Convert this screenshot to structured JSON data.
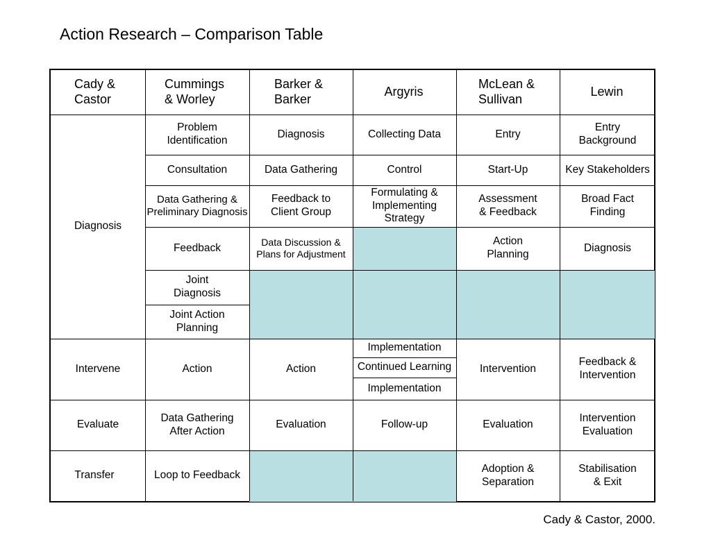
{
  "title": "Action Research – Comparison Table",
  "credit": "Cady & Castor, 2000.",
  "colors": {
    "shade": "#b9dfe2",
    "border": "#000000"
  },
  "headers": [
    "Cady &\nCastor",
    "Cummings\n& Worley",
    "Barker &\nBarker",
    "Argyris",
    "McLean &\nSullivan",
    "Lewin"
  ],
  "rows": {
    "diagnosis_label": "Diagnosis",
    "r1": [
      "Problem\nIdentification",
      "Diagnosis",
      "Collecting Data",
      "Entry",
      "Entry\nBackground"
    ],
    "r2": [
      "Consultation",
      "Data Gathering",
      "Control",
      "Start-Up",
      "Key Stakeholders"
    ],
    "r3": [
      "Data Gathering &\nPreliminary Diagnosis",
      "Feedback to\nClient Group",
      "Formulating &\nImplementing\nStrategy",
      "Assessment\n& Feedback",
      "Broad Fact\nFinding"
    ],
    "r4": [
      "Feedback",
      "Data Discussion &\nPlans for Adjustment",
      "Action\nPlanning",
      "Diagnosis"
    ],
    "r5": [
      "Joint\nDiagnosis"
    ],
    "r6": [
      "Joint Action\nPlanning"
    ],
    "intervene": [
      "Intervene",
      "Action",
      "Action",
      "Implementation",
      "Continued Learning",
      "Implementation",
      "Intervention",
      "Feedback &\nIntervention"
    ],
    "evaluate": [
      "Evaluate",
      "Data Gathering\nAfter Action",
      "Evaluation",
      "Follow-up",
      "Evaluation",
      "Intervention\nEvaluation"
    ],
    "transfer": [
      "Transfer",
      "Loop to Feedback",
      "Adoption &\nSeparation",
      "Stabilisation\n& Exit"
    ]
  }
}
